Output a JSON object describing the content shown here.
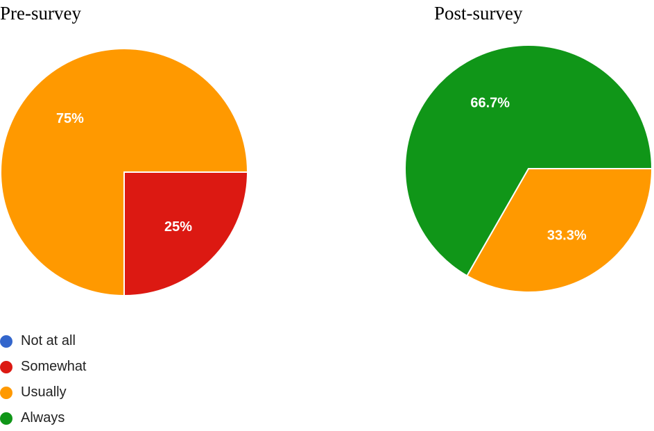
{
  "legend": [
    {
      "label": "Not at all",
      "color": "#3366cc"
    },
    {
      "label": "Somewhat",
      "color": "#dc1912"
    },
    {
      "label": "Usually",
      "color": "#ff9900"
    },
    {
      "label": "Always",
      "color": "#109618"
    }
  ],
  "chart_data": [
    {
      "type": "pie",
      "title": "Pre-survey",
      "series": [
        {
          "name": "Not at all",
          "value": 0,
          "label": "",
          "color": "#3366cc"
        },
        {
          "name": "Somewhat",
          "value": 25,
          "label": "25%",
          "color": "#dc1912"
        },
        {
          "name": "Usually",
          "value": 75,
          "label": "75%",
          "color": "#ff9900"
        },
        {
          "name": "Always",
          "value": 0,
          "label": "",
          "color": "#109618"
        }
      ],
      "legend_position": "bottom-left"
    },
    {
      "type": "pie",
      "title": "Post-survey",
      "series": [
        {
          "name": "Not at all",
          "value": 0,
          "label": "",
          "color": "#3366cc"
        },
        {
          "name": "Somewhat",
          "value": 0,
          "label": "",
          "color": "#dc1912"
        },
        {
          "name": "Usually",
          "value": 33.3,
          "label": "33.3%",
          "color": "#ff9900"
        },
        {
          "name": "Always",
          "value": 66.7,
          "label": "66.7%",
          "color": "#109618"
        }
      ]
    }
  ]
}
